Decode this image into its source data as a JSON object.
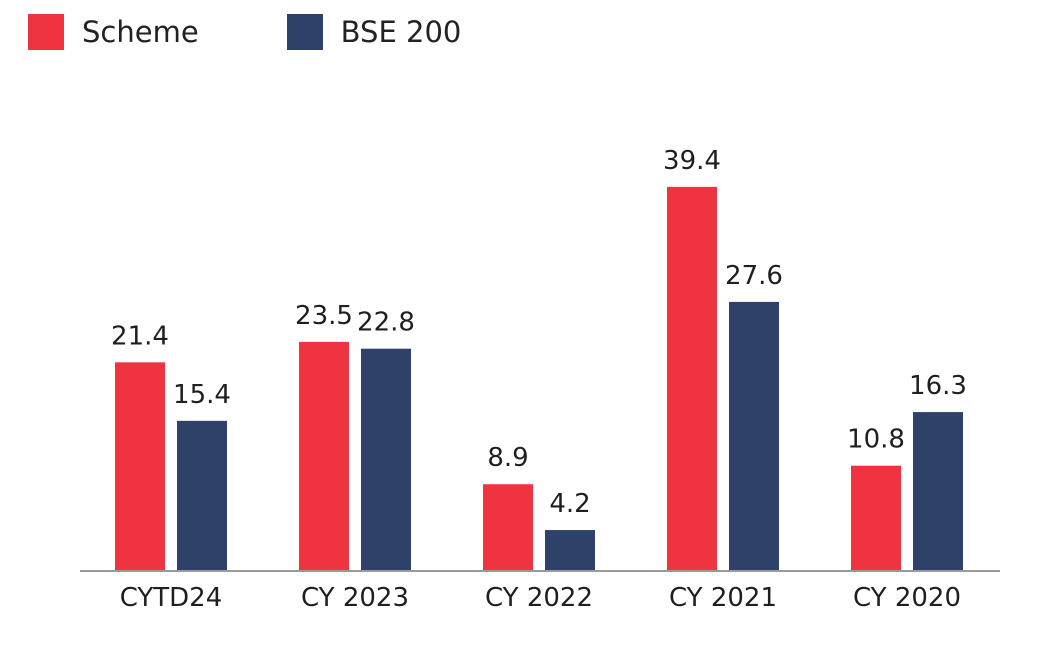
{
  "chart_data": {
    "type": "bar",
    "categories": [
      "CYTD24",
      "CY 2023",
      "CY 2022",
      "CY 2021",
      "CY 2020"
    ],
    "series": [
      {
        "name": "Scheme",
        "color": "#ef3340",
        "values": [
          21.4,
          23.5,
          8.9,
          39.4,
          10.8
        ]
      },
      {
        "name": "BSE 200",
        "color": "#2e4168",
        "values": [
          15.4,
          22.8,
          4.2,
          27.6,
          16.3
        ]
      }
    ],
    "ylim": [
      0,
      40
    ],
    "grid": false,
    "legend": "top-left",
    "axis_color": "#9a9a9a"
  }
}
